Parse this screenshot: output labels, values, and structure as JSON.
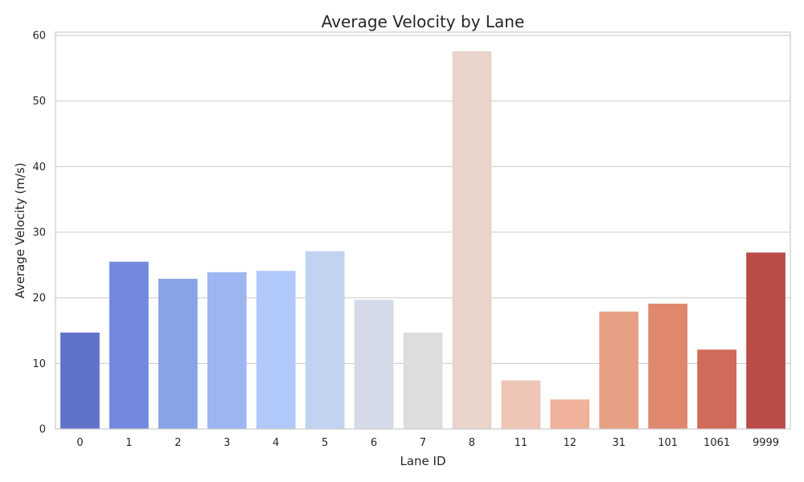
{
  "chart_data": {
    "type": "bar",
    "title": "Average Velocity by Lane",
    "xlabel": "Lane ID",
    "ylabel": "Average Velocity (m/s)",
    "categories": [
      "0",
      "1",
      "2",
      "3",
      "4",
      "5",
      "6",
      "7",
      "8",
      "11",
      "12",
      "31",
      "101",
      "1061",
      "9999"
    ],
    "values": [
      14.7,
      25.5,
      22.9,
      23.9,
      24.1,
      27.1,
      19.7,
      14.7,
      57.6,
      7.4,
      4.5,
      17.9,
      19.1,
      12.1,
      26.9
    ],
    "colors": [
      "#6073cb",
      "#7389df",
      "#88a3e8",
      "#9db6f1",
      "#b0c9fa",
      "#c2d3f1",
      "#d5dae8",
      "#dddddd",
      "#e8d4cb",
      "#eec6b6",
      "#f0b29b",
      "#e8a085",
      "#df886e",
      "#d06a59",
      "#ba4b47"
    ],
    "ylim": [
      0,
      60.5
    ],
    "yticks": [
      0,
      10,
      20,
      30,
      40,
      50,
      60
    ],
    "grid": true,
    "legend": "none"
  }
}
